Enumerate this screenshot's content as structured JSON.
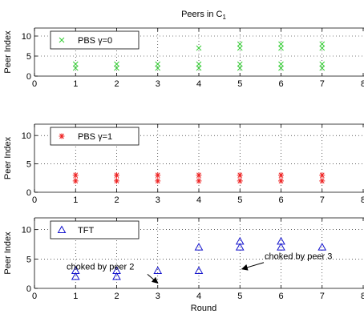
{
  "chart_data": {
    "type": "scatter",
    "title": "Peers in C",
    "title_subscript": "1",
    "xlabel": "Round",
    "ylabel": "Peer Index",
    "xlim": [
      0,
      8
    ],
    "ylim": [
      0,
      12
    ],
    "grid": true,
    "panels": [
      {
        "name": "PBS γ=0",
        "marker": "x",
        "color": "#33cc33",
        "legend_position": "top-left",
        "points": [
          [
            1,
            2
          ],
          [
            1,
            3
          ],
          [
            2,
            2
          ],
          [
            2,
            3
          ],
          [
            3,
            2
          ],
          [
            3,
            3
          ],
          [
            4,
            2
          ],
          [
            4,
            3
          ],
          [
            4,
            7
          ],
          [
            5,
            2
          ],
          [
            5,
            3
          ],
          [
            5,
            7
          ],
          [
            5,
            8
          ],
          [
            6,
            2
          ],
          [
            6,
            3
          ],
          [
            6,
            7
          ],
          [
            6,
            8
          ],
          [
            7,
            2
          ],
          [
            7,
            3
          ],
          [
            7,
            7
          ],
          [
            7,
            8
          ]
        ]
      },
      {
        "name": "PBS γ=1",
        "marker": "asterisk",
        "color": "#ee2222",
        "legend_position": "top-left",
        "points": [
          [
            1,
            2
          ],
          [
            1,
            3
          ],
          [
            2,
            2
          ],
          [
            2,
            3
          ],
          [
            3,
            2
          ],
          [
            3,
            3
          ],
          [
            4,
            2
          ],
          [
            4,
            3
          ],
          [
            5,
            2
          ],
          [
            5,
            3
          ],
          [
            6,
            2
          ],
          [
            6,
            3
          ],
          [
            7,
            2
          ],
          [
            7,
            3
          ]
        ]
      },
      {
        "name": "TFT",
        "marker": "triangle",
        "color": "#1111cc",
        "legend_position": "top-left",
        "points": [
          [
            1,
            2
          ],
          [
            1,
            3
          ],
          [
            2,
            2
          ],
          [
            2,
            3
          ],
          [
            3,
            3
          ],
          [
            4,
            3
          ],
          [
            4,
            7
          ],
          [
            5,
            7
          ],
          [
            5,
            8
          ],
          [
            6,
            7
          ],
          [
            6,
            8
          ],
          [
            7,
            7
          ]
        ],
        "annotations": [
          {
            "text": "choked by peer 2",
            "from": [
              2.8,
              1.8
            ],
            "to": [
              3.0,
              0.9
            ]
          },
          {
            "text": "choked by peer 3",
            "from": [
              5.5,
              4.6
            ],
            "to": [
              5.05,
              3.3
            ]
          }
        ]
      }
    ],
    "xticks": [
      "0",
      "1",
      "2",
      "3",
      "4",
      "5",
      "6",
      "7",
      "8"
    ],
    "yticks": [
      "0",
      "5",
      "10"
    ]
  }
}
